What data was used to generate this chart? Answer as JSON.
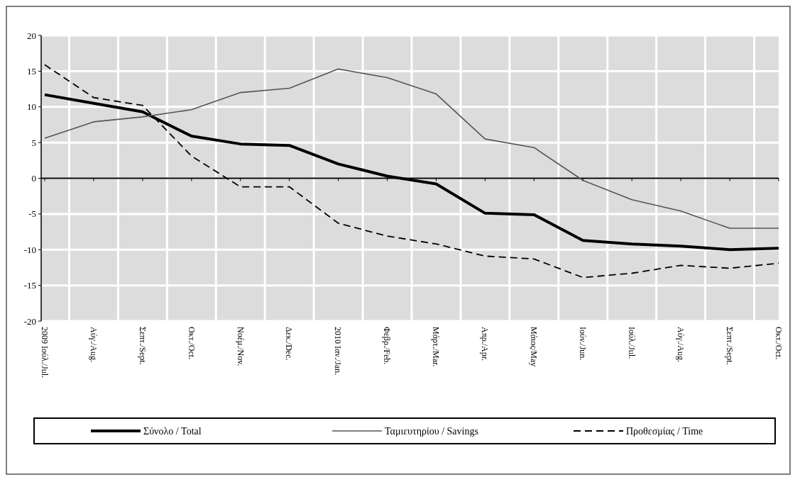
{
  "chart_data": {
    "type": "line",
    "categories": [
      "2009 Ιούλ./Jul.",
      "Αύγ./Aug.",
      "Σεπτ./Sept.",
      "Οκτ./Oct.",
      "Νοέμ./Nov.",
      "Δεκ./Dec.",
      "2010 Ιαν./Jan.",
      "Φεβρ./Feb.",
      "Μάρτ./Mar.",
      "Απρ./Apr.",
      "Μάιος/May",
      "Ιούν./Jun.",
      "Ιούλ./Jul.",
      "Αύγ./Aug.",
      "Σεπτ./Sept.",
      "Οκτ./Oct."
    ],
    "series": [
      {
        "name": "Σύνολο / Total",
        "color": "#000000",
        "line_style": "solid",
        "values": [
          11.7,
          10.5,
          9.3,
          5.9,
          4.8,
          4.6,
          2.0,
          0.3,
          -0.8,
          -4.9,
          -5.1,
          -8.7,
          -9.2,
          -9.5,
          -10.0,
          -9.8
        ]
      },
      {
        "name": "Ταμιευτηρίου / Savings",
        "color": "#555555",
        "line_style": "solid",
        "values": [
          5.6,
          7.9,
          8.6,
          9.6,
          12.0,
          12.6,
          15.3,
          14.1,
          11.8,
          5.5,
          4.3,
          -0.3,
          -3.0,
          -4.6,
          -7.0,
          -7.0
        ]
      },
      {
        "name": "Προθεσμίας / Time",
        "color": "#000000",
        "line_style": "dashed",
        "values": [
          15.9,
          11.3,
          10.2,
          3.1,
          -1.2,
          -1.2,
          -6.3,
          -8.1,
          -9.2,
          -10.9,
          -11.3,
          -13.9,
          -13.3,
          -12.2,
          -12.6,
          -11.9
        ]
      }
    ],
    "ylim": [
      -20,
      20
    ],
    "yticks": [
      -20,
      -15,
      -10,
      -5,
      0,
      5,
      10,
      15,
      20
    ],
    "grid": true,
    "legend": "bottom"
  }
}
